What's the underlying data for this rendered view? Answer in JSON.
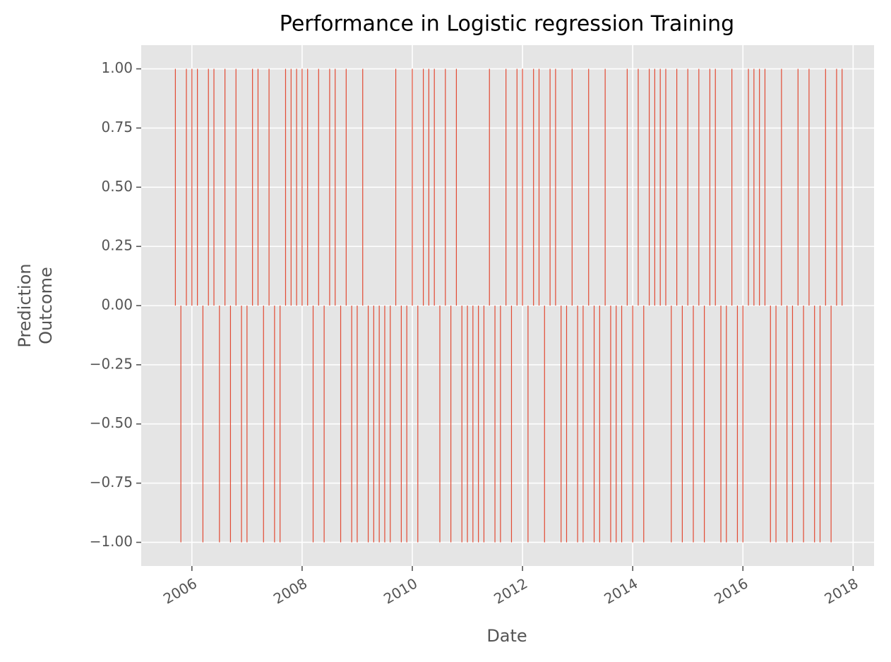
{
  "chart_data": {
    "type": "bar",
    "title": "Performance in Logistic regression Training",
    "xlabel": "Date",
    "ylabel": [
      "Prediction",
      "Outcome"
    ],
    "color": "#E24A33",
    "grid": true,
    "xlim": [
      2005.08,
      2018.38
    ],
    "xticks": [
      2006,
      2008,
      2010,
      2012,
      2014,
      2016,
      2018
    ],
    "ylim": [
      -1.1,
      1.1
    ],
    "yticks": [
      {
        "value": -1,
        "label": "−1.00"
      },
      {
        "value": -0.75,
        "label": "−0.75"
      },
      {
        "value": -0.5,
        "label": "−0.50"
      },
      {
        "value": -0.25,
        "label": "−0.25"
      },
      {
        "value": 0,
        "label": "0.00"
      },
      {
        "value": 0.25,
        "label": "0.25"
      },
      {
        "value": 0.5,
        "label": "0.50"
      },
      {
        "value": 0.75,
        "label": "0.75"
      },
      {
        "value": 1,
        "label": "1.00"
      }
    ],
    "x": [
      2005.7,
      2005.8,
      2005.9,
      2006,
      2006.1,
      2006.2,
      2006.3,
      2006.4,
      2006.5,
      2006.6,
      2006.7,
      2006.8,
      2006.9,
      2007,
      2007.1,
      2007.2,
      2007.3,
      2007.4,
      2007.5,
      2007.6,
      2007.7,
      2007.8,
      2007.9,
      2008,
      2008.1,
      2008.2,
      2008.3,
      2008.4,
      2008.5,
      2008.6,
      2008.7,
      2008.8,
      2008.9,
      2009,
      2009.1,
      2009.2,
      2009.3,
      2009.4,
      2009.5,
      2009.6,
      2009.7,
      2009.8,
      2009.9,
      2010,
      2010.1,
      2010.2,
      2010.3,
      2010.4,
      2010.5,
      2010.6,
      2010.7,
      2010.8,
      2010.9,
      2011,
      2011.1,
      2011.2,
      2011.3,
      2011.4,
      2011.5,
      2011.6,
      2011.7,
      2011.8,
      2011.9,
      2012,
      2012.1,
      2012.2,
      2012.3,
      2012.4,
      2012.5,
      2012.6,
      2012.7,
      2012.8,
      2012.9,
      2013,
      2013.1,
      2013.2,
      2013.3,
      2013.4,
      2013.5,
      2013.6,
      2013.7,
      2013.8,
      2013.9,
      2014,
      2014.1,
      2014.2,
      2014.3,
      2014.4,
      2014.5,
      2014.6,
      2014.7,
      2014.8,
      2014.9,
      2015,
      2015.1,
      2015.2,
      2015.3,
      2015.4,
      2015.5,
      2015.6,
      2015.7,
      2015.8,
      2015.9,
      2016,
      2016.1,
      2016.2,
      2016.3,
      2016.4,
      2016.5,
      2016.6,
      2016.7,
      2016.8,
      2016.9,
      2017,
      2017.1,
      2017.2,
      2017.3,
      2017.4,
      2017.5,
      2017.6,
      2017.7,
      2017.8
    ],
    "values": [
      1,
      -1,
      1,
      1,
      1,
      -1,
      1,
      1,
      -1,
      1,
      -1,
      1,
      -1,
      -1,
      1,
      1,
      -1,
      1,
      -1,
      -1,
      1,
      1,
      1,
      1,
      1,
      -1,
      1,
      -1,
      1,
      1,
      -1,
      1,
      -1,
      -1,
      1,
      -1,
      -1,
      -1,
      -1,
      -1,
      1,
      -1,
      -1,
      1,
      -1,
      1,
      1,
      1,
      -1,
      1,
      -1,
      1,
      -1,
      -1,
      -1,
      -1,
      -1,
      1,
      -1,
      -1,
      1,
      -1,
      1,
      1,
      -1,
      1,
      1,
      -1,
      1,
      1,
      -1,
      -1,
      1,
      -1,
      -1,
      1,
      -1,
      -1,
      1,
      -1,
      -1,
      -1,
      1,
      -1,
      1,
      -1,
      1,
      1,
      1,
      1,
      -1,
      1,
      -1,
      1,
      -1,
      1,
      -1,
      1,
      1,
      -1,
      -1,
      1,
      -1,
      -1,
      1,
      1,
      1,
      1,
      -1,
      -1,
      1,
      -1,
      -1,
      1,
      -1,
      1,
      -1,
      -1,
      1,
      -1,
      1,
      1
    ]
  }
}
